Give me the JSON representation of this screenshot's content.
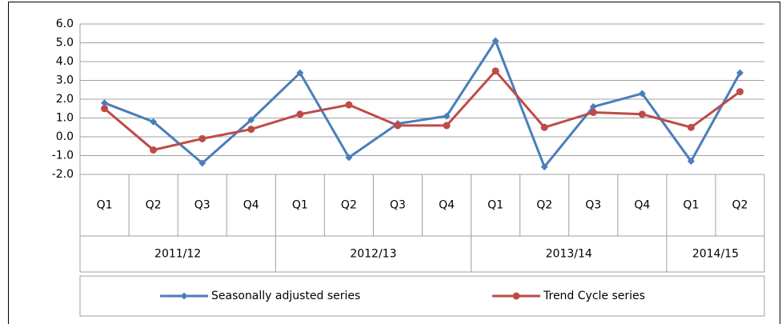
{
  "chart_data": {
    "type": "line",
    "categories": [
      "Q1",
      "Q2",
      "Q3",
      "Q4",
      "Q1",
      "Q2",
      "Q3",
      "Q4",
      "Q1",
      "Q2",
      "Q3",
      "Q4",
      "Q1",
      "Q2"
    ],
    "groups": [
      {
        "name": "2011/12",
        "count": 4
      },
      {
        "name": "2012/13",
        "count": 4
      },
      {
        "name": "2013/14",
        "count": 4
      },
      {
        "name": "2014/15",
        "count": 2
      }
    ],
    "series": [
      {
        "name": "Seasonally adjusted series",
        "color": "#4a7ebb",
        "marker": "diamond",
        "values": [
          1.8,
          0.8,
          -1.4,
          0.9,
          3.4,
          -1.1,
          0.7,
          1.1,
          5.1,
          -1.6,
          1.6,
          2.3,
          -1.3,
          3.4
        ]
      },
      {
        "name": "Trend Cycle series",
        "color": "#be4b48",
        "marker": "circle",
        "values": [
          1.5,
          -0.7,
          -0.1,
          0.4,
          1.2,
          1.7,
          0.6,
          0.6,
          3.5,
          0.5,
          1.3,
          1.2,
          0.5,
          2.4
        ]
      }
    ],
    "ylim": [
      -2,
      6
    ],
    "yticks": [
      {
        "value": -2,
        "label": "-2.0"
      },
      {
        "value": -1,
        "label": "-1.0"
      },
      {
        "value": 0,
        "label": "0.0"
      },
      {
        "value": 1,
        "label": "1.0"
      },
      {
        "value": 2,
        "label": "2.0"
      },
      {
        "value": 3,
        "label": "3.0"
      },
      {
        "value": 4,
        "label": "4.0"
      },
      {
        "value": 5,
        "label": "5.0"
      },
      {
        "value": 6,
        "label": "6.0"
      }
    ],
    "grid": true,
    "legend": "bottom"
  }
}
